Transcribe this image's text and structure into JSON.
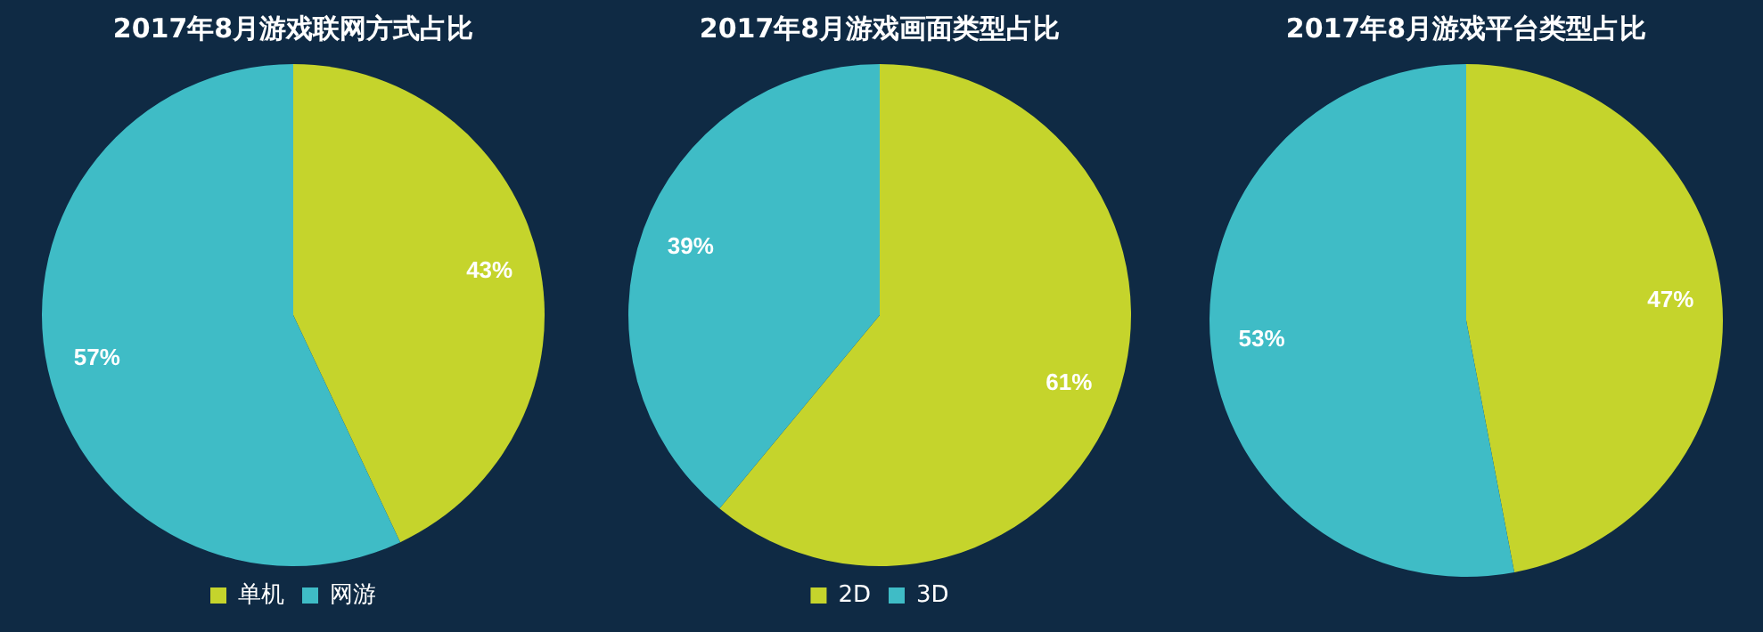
{
  "chart_data": [
    {
      "type": "pie",
      "title": "2017年8月游戏联网方式占比",
      "categories": [
        "单机",
        "网游"
      ],
      "values": [
        43,
        57
      ],
      "colors": [
        "#c5d42c",
        "#3fbcc6"
      ],
      "value_labels": [
        "43%",
        "57%"
      ],
      "legend": "bottom"
    },
    {
      "type": "pie",
      "title": "2017年8月游戏画面类型占比",
      "categories": [
        "2D",
        "3D"
      ],
      "values": [
        61,
        39
      ],
      "colors": [
        "#c5d42c",
        "#3fbcc6"
      ],
      "value_labels": [
        "61%",
        "39%"
      ],
      "legend": "bottom"
    },
    {
      "type": "pie",
      "title": "2017年8月游戏平台类型占比",
      "categories": [
        null,
        null
      ],
      "values": [
        47,
        53
      ],
      "colors": [
        "#c5d42c",
        "#3fbcc6"
      ],
      "value_labels": [
        "47%",
        "53%"
      ]
    }
  ]
}
